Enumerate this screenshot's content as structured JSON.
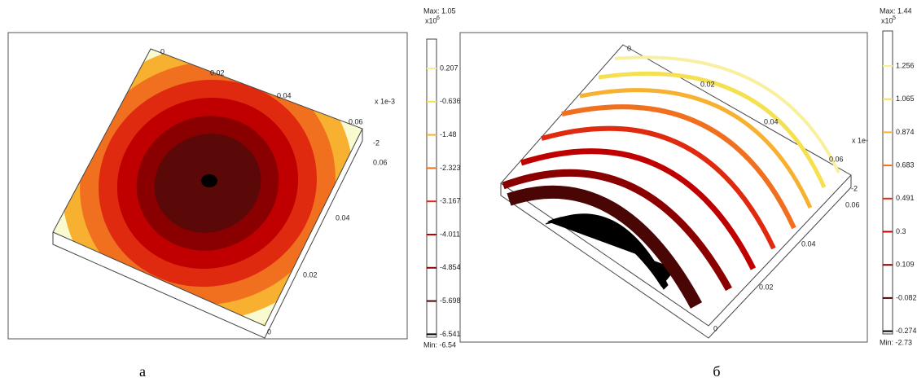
{
  "panels": [
    {
      "caption": "а",
      "max_label": "Max: 1.05",
      "exponent": "x10",
      "exponent_power": "6",
      "min_label": "Min: -6.54",
      "colorbar_ticks": [
        "0.207",
        "-0.636",
        "-1.48",
        "-2.323",
        "-3.167",
        "-4.011",
        "-4.854",
        "-5.698",
        "-6.541"
      ],
      "axis_labels": [
        "0",
        "0.02",
        "0.04",
        "0.06",
        "x 1e-3",
        "-2",
        "0.06",
        "0.04",
        "0.02",
        "0"
      ]
    },
    {
      "caption": "б",
      "max_label": "Max: 1.44",
      "exponent": "x10",
      "exponent_power": "5",
      "min_label": "Min: -2.73",
      "colorbar_ticks": [
        "1.256",
        "1.065",
        "0.874",
        "0.683",
        "0.491",
        "0.3",
        "0.109",
        "-0.082",
        "-0.274"
      ],
      "axis_labels": [
        "0",
        "0.02",
        "0.04",
        "0.06",
        "x 1e-",
        "-2",
        "0.06",
        "0.04",
        "0.02",
        "0"
      ]
    }
  ]
}
